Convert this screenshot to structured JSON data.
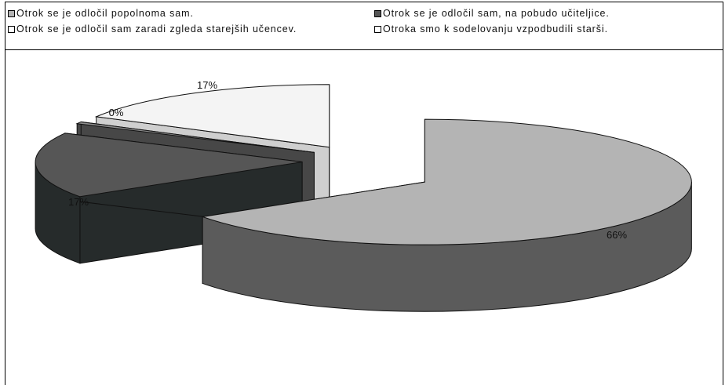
{
  "chart_data": {
    "type": "pie",
    "three_d": true,
    "legend_position": "top",
    "categories": [
      "Otrok se je odločil popolnoma sam.",
      "Otrok se je odločil sam, na pobudo učiteljice.",
      "Otrok se je odločil sam zaradi zgleda starejših učencev.",
      "Otroka smo k sodelovanju vzpodbudili starši."
    ],
    "values": [
      66,
      17,
      0,
      17
    ],
    "labels": [
      "66%",
      "17%",
      "0%",
      "17%"
    ],
    "colors": {
      "top": [
        "#b4b4b4",
        "#565656",
        "#8c8c8c",
        "#f4f4f4"
      ],
      "side": [
        "#5b5b5b",
        "#262b2b",
        "#474747",
        "#cfcfcf"
      ]
    }
  }
}
